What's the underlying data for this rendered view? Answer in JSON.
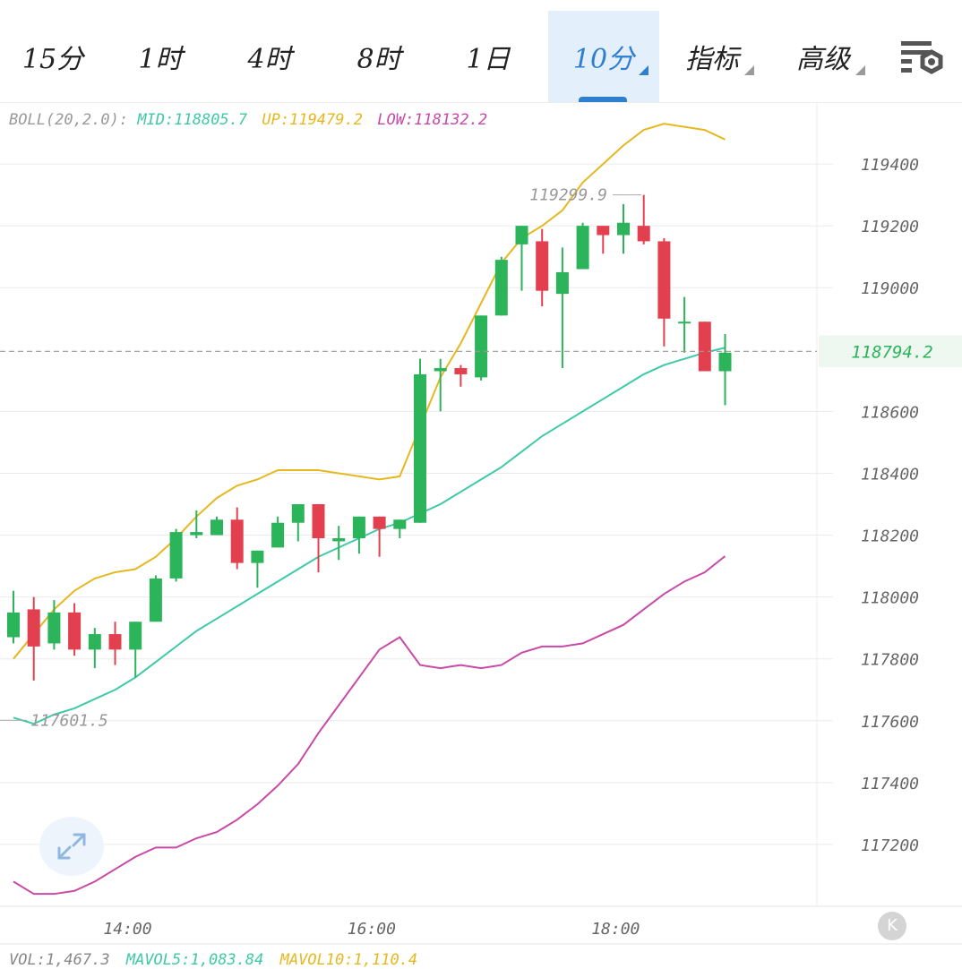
{
  "tabs": [
    {
      "label": "15分",
      "active": false,
      "dropdown": false
    },
    {
      "label": "1时",
      "active": false,
      "dropdown": false
    },
    {
      "label": "4时",
      "active": false,
      "dropdown": false
    },
    {
      "label": "8时",
      "active": false,
      "dropdown": false
    },
    {
      "label": "1日",
      "active": false,
      "dropdown": false
    },
    {
      "label": "10分",
      "active": true,
      "dropdown": true
    },
    {
      "label": "指标",
      "active": false,
      "dropdown": true
    },
    {
      "label": "高级",
      "active": false,
      "dropdown": true
    }
  ],
  "boll": {
    "label": "BOLL(20,2.0):",
    "mid": "MID:118805.7",
    "up": "UP:119479.2",
    "low": "LOW:118132.2"
  },
  "vol": {
    "label": "VOL:1,467.3",
    "mavol5": "MAVOL5:1,083.84",
    "mavol10": "MAVOL10:1,110.4"
  },
  "k_button": "K",
  "colors": {
    "up": "#2bb45a",
    "down": "#e2404e",
    "mid": "#3ec9a7",
    "upper": "#e6b820",
    "lower": "#c84aa6",
    "accent": "#2f7fd0",
    "grid": "#ebebeb",
    "axis_text": "#666666"
  },
  "icons": {
    "settings": "chart-settings-icon",
    "expand": "expand-arrows-icon"
  },
  "chart_data": {
    "type": "candlestick",
    "interval": "10分",
    "ylim": [
      117000,
      119600
    ],
    "y_ticks": [
      119400,
      119200,
      119000,
      118600,
      118400,
      118200,
      118000,
      117800,
      117600,
      117400,
      117200
    ],
    "x_ticks": [
      "14:00",
      "16:00",
      "18:00"
    ],
    "current_price": "118794.2",
    "high_label": "119299.9",
    "low_label": "117601.5",
    "candles": [
      {
        "o": 117870,
        "h": 118020,
        "l": 117850,
        "c": 117950
      },
      {
        "o": 117960,
        "h": 118000,
        "l": 117730,
        "c": 117840
      },
      {
        "o": 117850,
        "h": 117990,
        "l": 117830,
        "c": 117950
      },
      {
        "o": 117950,
        "h": 117980,
        "l": 117810,
        "c": 117830
      },
      {
        "o": 117830,
        "h": 117900,
        "l": 117770,
        "c": 117880
      },
      {
        "o": 117880,
        "h": 117920,
        "l": 117780,
        "c": 117830
      },
      {
        "o": 117830,
        "h": 117920,
        "l": 117740,
        "c": 117920
      },
      {
        "o": 117920,
        "h": 118070,
        "l": 117920,
        "c": 118060
      },
      {
        "o": 118060,
        "h": 118220,
        "l": 118050,
        "c": 118210
      },
      {
        "o": 118200,
        "h": 118280,
        "l": 118190,
        "c": 118210
      },
      {
        "o": 118200,
        "h": 118260,
        "l": 118200,
        "c": 118250
      },
      {
        "o": 118250,
        "h": 118290,
        "l": 118090,
        "c": 118110
      },
      {
        "o": 118110,
        "h": 118150,
        "l": 118030,
        "c": 118150
      },
      {
        "o": 118160,
        "h": 118260,
        "l": 118160,
        "c": 118240
      },
      {
        "o": 118240,
        "h": 118300,
        "l": 118180,
        "c": 118300
      },
      {
        "o": 118300,
        "h": 118300,
        "l": 118080,
        "c": 118190
      },
      {
        "o": 118180,
        "h": 118230,
        "l": 118120,
        "c": 118190
      },
      {
        "o": 118190,
        "h": 118260,
        "l": 118140,
        "c": 118260
      },
      {
        "o": 118260,
        "h": 118260,
        "l": 118130,
        "c": 118220
      },
      {
        "o": 118220,
        "h": 118250,
        "l": 118190,
        "c": 118250
      },
      {
        "o": 118240,
        "h": 118770,
        "l": 118240,
        "c": 118720
      },
      {
        "o": 118730,
        "h": 118770,
        "l": 118600,
        "c": 118740
      },
      {
        "o": 118740,
        "h": 118750,
        "l": 118680,
        "c": 118720
      },
      {
        "o": 118710,
        "h": 118910,
        "l": 118700,
        "c": 118910
      },
      {
        "o": 118910,
        "h": 119100,
        "l": 118910,
        "c": 119090
      },
      {
        "o": 119140,
        "h": 119200,
        "l": 118990,
        "c": 119200
      },
      {
        "o": 119150,
        "h": 119190,
        "l": 118940,
        "c": 118990
      },
      {
        "o": 118980,
        "h": 119130,
        "l": 118740,
        "c": 119050
      },
      {
        "o": 119060,
        "h": 119210,
        "l": 119060,
        "c": 119200
      },
      {
        "o": 119200,
        "h": 119200,
        "l": 119110,
        "c": 119170
      },
      {
        "o": 119170,
        "h": 119270,
        "l": 119110,
        "c": 119210
      },
      {
        "o": 119200,
        "h": 119300,
        "l": 119140,
        "c": 119150
      },
      {
        "o": 119150,
        "h": 119160,
        "l": 118810,
        "c": 118900
      },
      {
        "o": 118890,
        "h": 118970,
        "l": 118790,
        "c": 118890
      },
      {
        "o": 118890,
        "h": 118890,
        "l": 118730,
        "c": 118730
      },
      {
        "o": 118730,
        "h": 118850,
        "l": 118620,
        "c": 118790
      }
    ],
    "series": [
      {
        "name": "MID",
        "values": [
          117610,
          117590,
          117620,
          117640,
          117670,
          117700,
          117740,
          117790,
          117840,
          117890,
          117930,
          117970,
          118010,
          118050,
          118090,
          118130,
          118160,
          118190,
          118220,
          118240,
          118270,
          118300,
          118340,
          118380,
          118420,
          118470,
          118520,
          118560,
          118600,
          118640,
          118680,
          118720,
          118750,
          118770,
          118790,
          118806
        ]
      },
      {
        "name": "UP",
        "values": [
          117800,
          117880,
          117960,
          118020,
          118060,
          118080,
          118090,
          118130,
          118190,
          118260,
          118320,
          118360,
          118380,
          118410,
          118410,
          118410,
          118400,
          118390,
          118380,
          118390,
          118550,
          118710,
          118820,
          118950,
          119080,
          119160,
          119200,
          119250,
          119340,
          119400,
          119460,
          119510,
          119530,
          119520,
          119510,
          119479
        ]
      },
      {
        "name": "LOW",
        "values": [
          117080,
          117040,
          117040,
          117050,
          117080,
          117120,
          117160,
          117190,
          117190,
          117220,
          117240,
          117280,
          117330,
          117390,
          117460,
          117560,
          117650,
          117740,
          117830,
          117870,
          117780,
          117770,
          117780,
          117770,
          117780,
          117820,
          117840,
          117840,
          117850,
          117880,
          117910,
          117960,
          118010,
          118050,
          118080,
          118132
        ]
      }
    ]
  }
}
